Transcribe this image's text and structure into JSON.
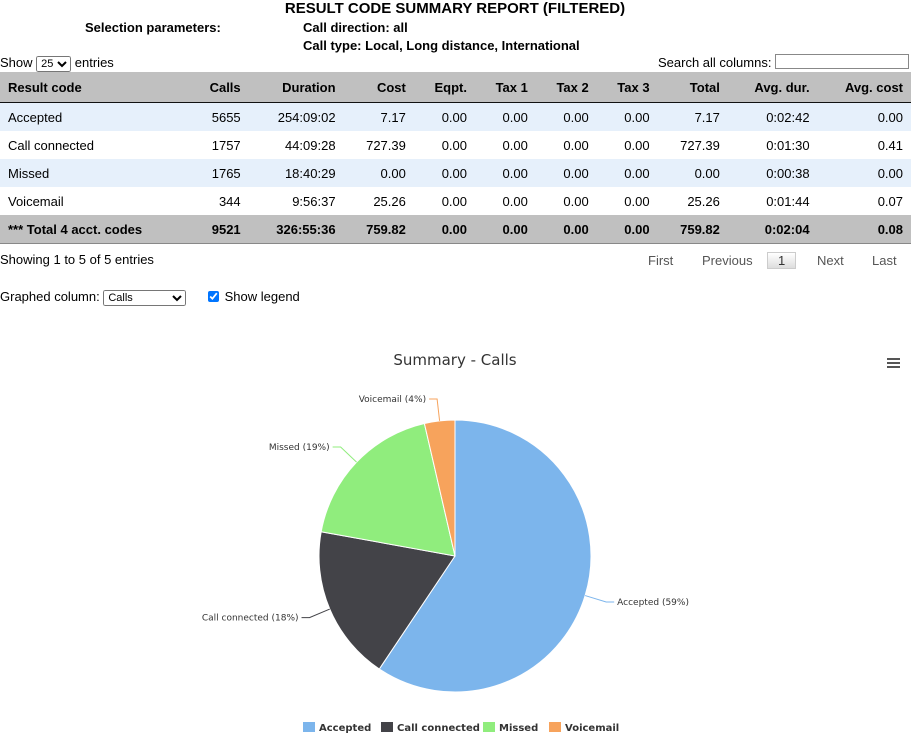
{
  "report": {
    "title": "RESULT CODE SUMMARY REPORT (FILTERED)",
    "selection_label": "Selection parameters:",
    "direction": "Call direction: all",
    "type": "Call type: Local, Long distance, International"
  },
  "controls": {
    "show": "Show",
    "entries_value": "25",
    "entries": "entries",
    "search_label": "Search all columns:",
    "search_value": ""
  },
  "table": {
    "headers": [
      "Result code",
      "Calls",
      "Duration",
      "Cost",
      "Eqpt.",
      "Tax 1",
      "Tax 2",
      "Tax 3",
      "Total",
      "Avg. dur.",
      "Avg. cost"
    ],
    "rows": [
      [
        "Accepted",
        "5655",
        "254:09:02",
        "7.17",
        "0.00",
        "0.00",
        "0.00",
        "0.00",
        "7.17",
        "0:02:42",
        "0.00"
      ],
      [
        "Call connected",
        "1757",
        "44:09:28",
        "727.39",
        "0.00",
        "0.00",
        "0.00",
        "0.00",
        "727.39",
        "0:01:30",
        "0.41"
      ],
      [
        "Missed",
        "1765",
        "18:40:29",
        "0.00",
        "0.00",
        "0.00",
        "0.00",
        "0.00",
        "0.00",
        "0:00:38",
        "0.00"
      ],
      [
        "Voicemail",
        "344",
        "9:56:37",
        "25.26",
        "0.00",
        "0.00",
        "0.00",
        "0.00",
        "25.26",
        "0:01:44",
        "0.07"
      ]
    ],
    "total": [
      "*** Total 4 acct. codes",
      "9521",
      "326:55:36",
      "759.82",
      "0.00",
      "0.00",
      "0.00",
      "0.00",
      "759.82",
      "0:02:04",
      "0.08"
    ]
  },
  "pagination": {
    "info": "Showing 1 to 5 of 5 entries",
    "first": "First",
    "previous": "Previous",
    "current": "1",
    "next": "Next",
    "last": "Last"
  },
  "graph": {
    "label": "Graphed column:",
    "column": "Calls",
    "show_legend": "Show legend",
    "show_legend_checked": true
  },
  "chart_data": {
    "type": "pie",
    "title": "Summary - Calls",
    "categories": [
      "Accepted",
      "Call connected",
      "Missed",
      "Voicemail"
    ],
    "values": [
      5655,
      1757,
      1765,
      344
    ],
    "labels": [
      "Accepted (59%)",
      "Call connected (18%)",
      "Missed (19%)",
      "Voicemail (4%)"
    ],
    "colors": [
      "#7cb5ec",
      "#434348",
      "#90ed7d",
      "#f7a35c"
    ],
    "legend": "bottom",
    "menu_icon": "hamburger-menu-icon"
  }
}
